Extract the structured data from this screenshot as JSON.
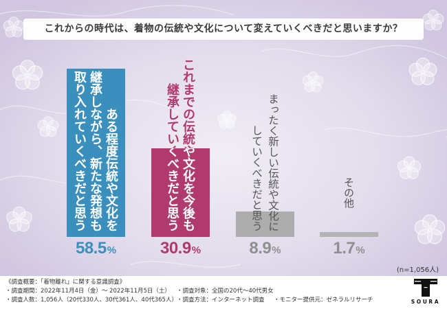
{
  "chart_data": {
    "type": "bar",
    "title": "これからの時代は、着物の伝統や文化について変えていくべきだと思いますか？",
    "categories": [
      [
        "ある程度伝統や文化を",
        "継承しながら、新たな発想も",
        "取り入れていくべきだと思う"
      ],
      [
        "これまでの伝統や文化を今後も",
        "継承していくべきだと思う"
      ],
      [
        "まったく新しい伝統や文化に",
        "していくべきだと思う"
      ],
      [
        "その他"
      ]
    ],
    "values": [
      58.5,
      30.9,
      8.9,
      1.7
    ],
    "unit": "%",
    "ylim": [
      0,
      60
    ],
    "grid": false,
    "legend": "none",
    "sample_size": "(n=1,056人)",
    "colors": {
      "bars": [
        "#3b8fbc",
        "#b03a6e",
        "#adadad",
        "#b3b3b3"
      ],
      "labels": [
        "#3b8fbc",
        "#b03a6e",
        "#8f8f8f",
        "#8f8f8f"
      ]
    }
  },
  "survey": {
    "heading": "《調査概要：「着物離れ」に関する意識調査》",
    "period": "・調査期間：2022年11月4日（金）～ 2022年11月5日（土）",
    "respondents": "・調査人数：1,056人（20代330人、30代361人、40代365人）",
    "target": "・調査対象：全国の20代～40代男女",
    "method": "・調査方法：インターネット調査",
    "provider": "・モニター提供元：ゼネラルリサーチ"
  },
  "logo": {
    "icon": "soura-logo-icon",
    "text": "SOURA"
  },
  "theme": {
    "background": "#c9bddb",
    "footer": "#ffffff"
  }
}
